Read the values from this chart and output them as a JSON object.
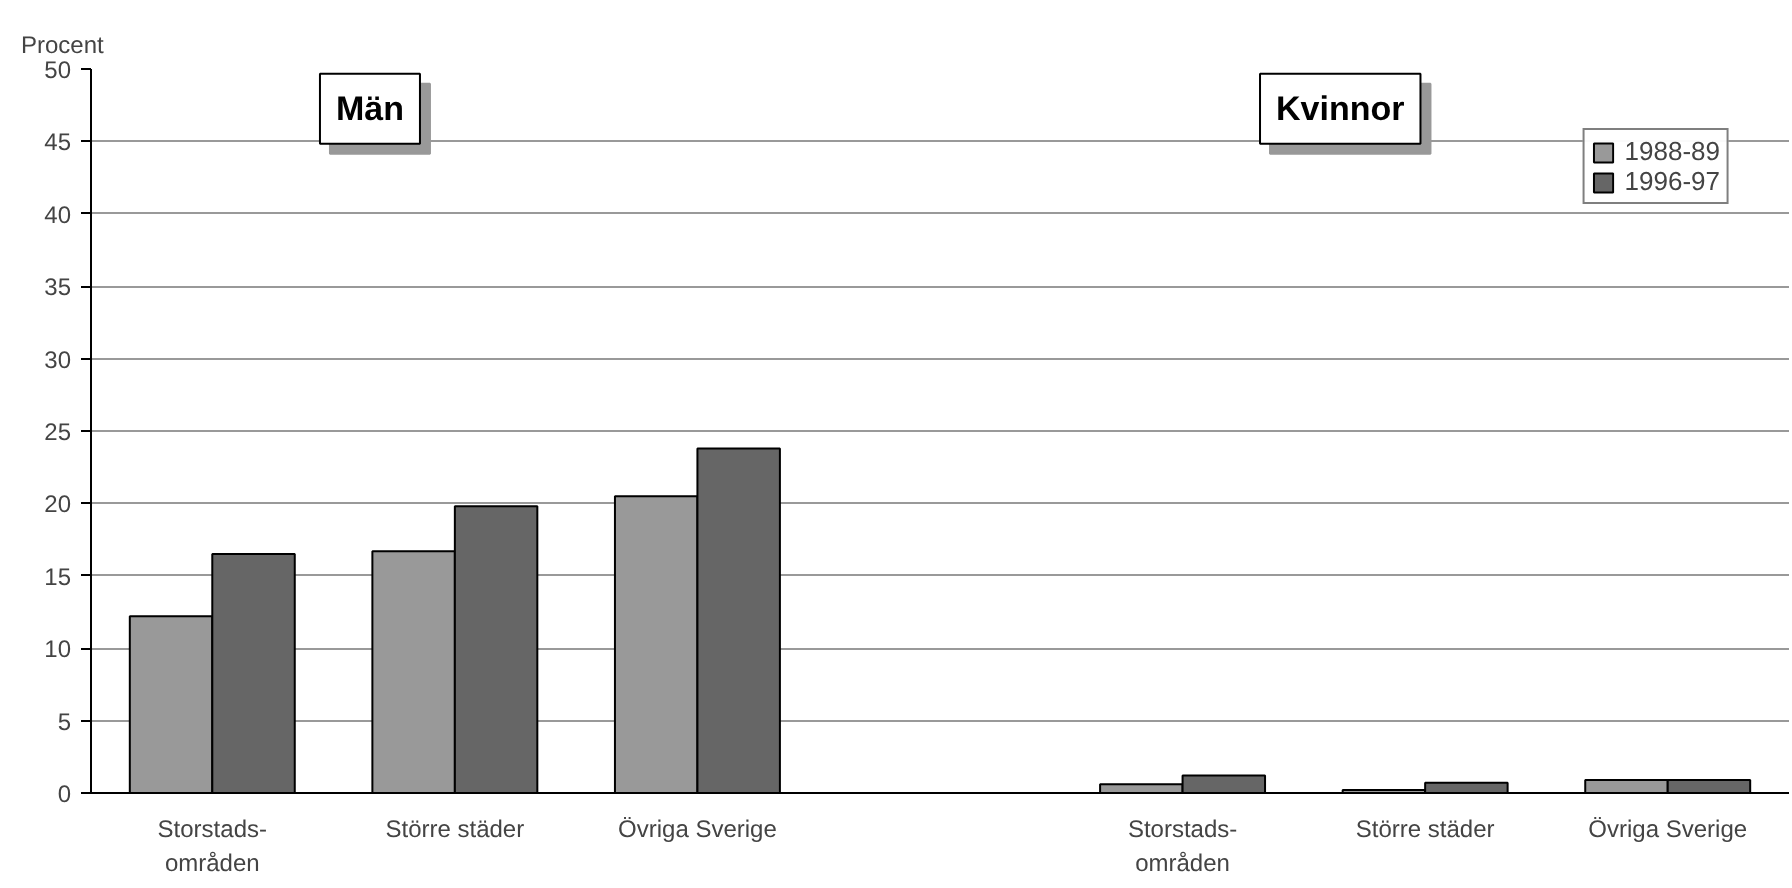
{
  "chart_data": {
    "type": "bar",
    "ylabel": "Procent",
    "categories": [
      "Storstads-\nområden",
      "Större städer",
      "Övriga Sverige",
      null,
      "Storstads-\nområden",
      "Större städer",
      "Övriga Sverige"
    ],
    "series": [
      {
        "name": "1988-89",
        "color": "#999999",
        "values": [
          12.2,
          16.7,
          20.5,
          null,
          0.6,
          0.2,
          0.9
        ]
      },
      {
        "name": "1996-97",
        "color": "#666666",
        "values": [
          16.5,
          19.8,
          23.8,
          null,
          1.2,
          0.7,
          0.9
        ]
      }
    ],
    "annotations": [
      "Män",
      "Kvinnor"
    ],
    "ylim": [
      0,
      50
    ],
    "yticks": [
      0,
      5,
      10,
      15,
      20,
      25,
      30,
      35,
      40,
      45,
      50
    ],
    "grid": "y",
    "legend": "top right"
  }
}
